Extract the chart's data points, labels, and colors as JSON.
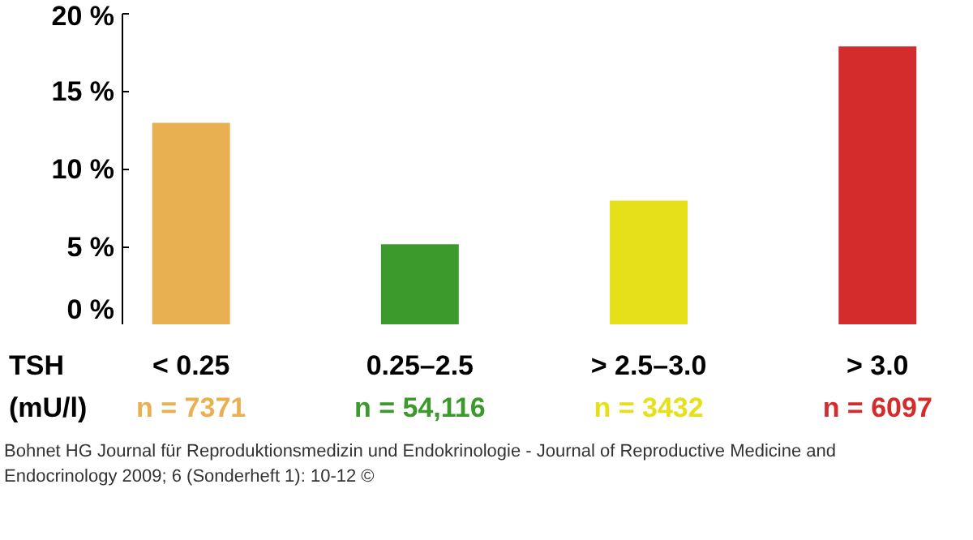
{
  "chart_data": {
    "type": "bar",
    "categories": [
      "< 0.25",
      "0.25–2.5",
      "> 2.5–3.0",
      "> 3.0"
    ],
    "values": [
      13,
      5.2,
      8,
      17.9
    ],
    "colors": [
      "#e8b050",
      "#3c9a2c",
      "#e6e01a",
      "#d42c2c"
    ],
    "ylim": [
      0,
      20
    ],
    "yticks": [
      {
        "value": 0,
        "label": "0 %"
      },
      {
        "value": 5,
        "label": "5 %"
      },
      {
        "value": 10,
        "label": "10 %"
      },
      {
        "value": 15,
        "label": "15 %"
      },
      {
        "value": 20,
        "label": "20 %"
      }
    ],
    "grid": false,
    "annotations": [
      "TSH",
      "(mU/l)",
      "n = 7371",
      "n = 54,116",
      "n = 3432",
      "n = 6097",
      "Bohnet HG Journal für Reproduktionsmedizin und Endokrinologie - Journal of Reproductive Medicine and\nEndocrinology 2009; 6 (Sonderheft 1): 10-12 ©"
    ]
  }
}
